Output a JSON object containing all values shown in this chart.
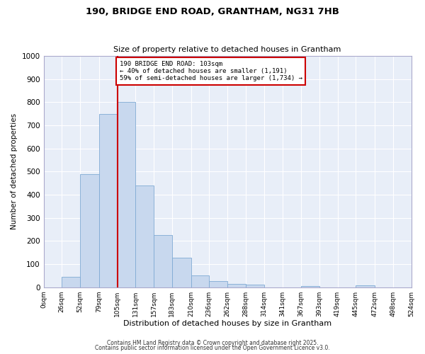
{
  "title": "190, BRIDGE END ROAD, GRANTHAM, NG31 7HB",
  "subtitle": "Size of property relative to detached houses in Grantham",
  "xlabel": "Distribution of detached houses by size in Grantham",
  "ylabel": "Number of detached properties",
  "bin_labels": [
    "0sqm",
    "26sqm",
    "52sqm",
    "79sqm",
    "105sqm",
    "131sqm",
    "157sqm",
    "183sqm",
    "210sqm",
    "236sqm",
    "262sqm",
    "288sqm",
    "314sqm",
    "341sqm",
    "367sqm",
    "393sqm",
    "419sqm",
    "445sqm",
    "472sqm",
    "498sqm",
    "524sqm"
  ],
  "bin_edges": [
    0,
    26,
    52,
    79,
    105,
    131,
    157,
    183,
    210,
    236,
    262,
    288,
    314,
    341,
    367,
    393,
    419,
    445,
    472,
    498,
    524
  ],
  "bar_heights": [
    0,
    45,
    490,
    750,
    800,
    440,
    225,
    127,
    52,
    28,
    15,
    10,
    0,
    0,
    5,
    0,
    0,
    7,
    0,
    0,
    0
  ],
  "bar_color": "#c8d8ee",
  "bar_edge_color": "#7faad4",
  "plot_bg_color": "#e8eef8",
  "fig_bg_color": "#ffffff",
  "grid_color": "#ffffff",
  "vline_x": 105,
  "vline_color": "#cc0000",
  "annotation_text": "190 BRIDGE END ROAD: 103sqm\n← 40% of detached houses are smaller (1,191)\n59% of semi-detached houses are larger (1,734) →",
  "annotation_box_color": "#ffffff",
  "annotation_border_color": "#cc0000",
  "ylim": [
    0,
    1000
  ],
  "yticks": [
    0,
    100,
    200,
    300,
    400,
    500,
    600,
    700,
    800,
    900,
    1000
  ],
  "footer1": "Contains HM Land Registry data © Crown copyright and database right 2025.",
  "footer2": "Contains public sector information licensed under the Open Government Licence v3.0."
}
